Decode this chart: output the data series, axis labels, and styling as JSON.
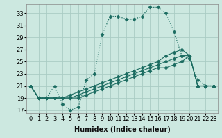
{
  "xlabel": "Humidex (Indice chaleur)",
  "background_color": "#cce8e0",
  "grid_color": "#aaccC4",
  "line_color": "#1a6b60",
  "xlim": [
    -0.5,
    23.5
  ],
  "ylim": [
    16.5,
    34.5
  ],
  "xticks": [
    0,
    1,
    2,
    3,
    4,
    5,
    6,
    7,
    8,
    9,
    10,
    11,
    12,
    13,
    14,
    15,
    16,
    17,
    18,
    19,
    20,
    21,
    22,
    23
  ],
  "yticks": [
    17,
    19,
    21,
    23,
    25,
    27,
    29,
    31,
    33
  ],
  "series_dotted": [
    21,
    19,
    19,
    21,
    18,
    17,
    17.5,
    22,
    23,
    29.5,
    32.5,
    32.5,
    32,
    32,
    32.5,
    34,
    34,
    33,
    30,
    26,
    25.5,
    22,
    21,
    21
  ],
  "series_solid": [
    [
      21,
      19,
      19,
      19,
      19,
      19,
      19,
      19.5,
      20,
      20.5,
      21,
      21.5,
      22,
      22.5,
      23,
      23.5,
      24,
      24,
      24.5,
      25,
      26,
      21,
      21,
      21
    ],
    [
      21,
      19,
      19,
      19,
      19,
      19,
      19.5,
      20,
      20.5,
      21,
      21.5,
      22,
      22.5,
      23,
      23.5,
      24,
      24.5,
      25,
      25.5,
      26,
      26,
      21,
      21,
      21
    ],
    [
      21,
      19,
      19,
      19,
      19,
      19.5,
      20,
      20.5,
      21,
      21.5,
      22,
      22.5,
      23,
      23.5,
      24,
      24.5,
      25,
      26,
      26.5,
      27,
      26,
      21,
      21,
      21
    ]
  ],
  "marker": "D",
  "marker_size": 2.5,
  "tick_fontsize": 6,
  "xlabel_fontsize": 7
}
